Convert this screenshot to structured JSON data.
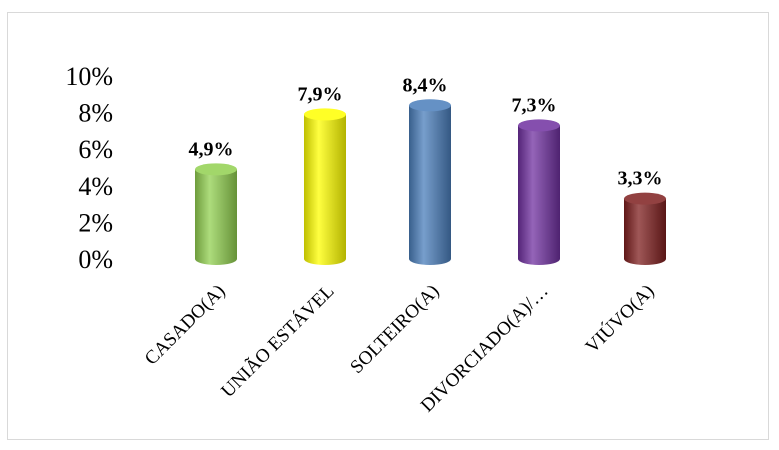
{
  "chart_data": {
    "type": "bar",
    "style": "3d-cylinder",
    "categories": [
      "CASADO(A)",
      "UNIÃO ESTÁVEL",
      "SOLTEIRO(A)",
      "DIVORCIADO(A)/…",
      "VIÚVO(A)"
    ],
    "values": [
      4.9,
      7.9,
      8.4,
      7.3,
      3.3
    ],
    "data_labels": [
      "4,9%",
      "7,9%",
      "8,4%",
      "7,3%",
      "3,3%"
    ],
    "colors": [
      "#92d050",
      "#ffff00",
      "#4a7ebb",
      "#7030a0",
      "#7f1f1f"
    ],
    "ylim": [
      0,
      10
    ],
    "yticks": [
      0,
      2,
      4,
      6,
      8,
      10
    ],
    "ytick_labels": [
      "0%",
      "2%",
      "4%",
      "6%",
      "8%",
      "10%"
    ],
    "grid": false,
    "legend": "none"
  }
}
